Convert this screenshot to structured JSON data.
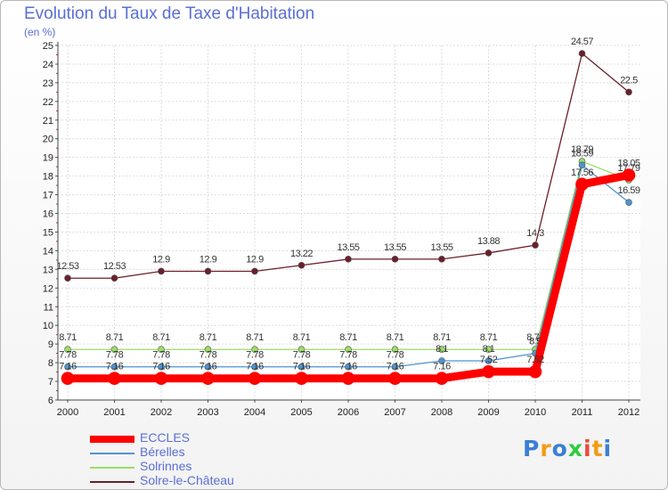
{
  "chart_data": {
    "type": "line",
    "title": "Evolution du Taux de Taxe d'Habitation",
    "subtitle": "(en %)",
    "x": [
      "2000",
      "2001",
      "2002",
      "2003",
      "2004",
      "2005",
      "2006",
      "2007",
      "2008",
      "2009",
      "2010",
      "2011",
      "2012"
    ],
    "ylim": [
      6,
      25
    ],
    "yticks": [
      6,
      7,
      8,
      9,
      10,
      11,
      12,
      13,
      14,
      15,
      16,
      17,
      18,
      19,
      20,
      21,
      22,
      23,
      24,
      25
    ],
    "grid": true,
    "legend_position": "bottom-left",
    "series": [
      {
        "name": "Solre-le-Château",
        "color": "#6b1f2a",
        "values": [
          12.53,
          12.53,
          12.9,
          12.9,
          12.9,
          13.22,
          13.55,
          13.55,
          13.55,
          13.88,
          14.3,
          24.57,
          22.5
        ],
        "labels": [
          "12.53",
          "12.53",
          "12.9",
          "12.9",
          "12.9",
          "13.22",
          "13.55",
          "13.55",
          "13.55",
          "13.88",
          "14.3",
          "24.57",
          "22.5"
        ]
      },
      {
        "name": "Solrinnes",
        "color": "#99dd66",
        "values": [
          8.71,
          8.71,
          8.71,
          8.71,
          8.71,
          8.71,
          8.71,
          8.71,
          8.71,
          8.71,
          8.71,
          18.79,
          17.79
        ],
        "labels": [
          "8.71",
          "8.71",
          "8.71",
          "8.71",
          "8.71",
          "8.71",
          "8.71",
          "8.71",
          "8.71",
          "8.71",
          "8.71",
          "18.79",
          "17.79"
        ]
      },
      {
        "name": "Bérelles",
        "color": "#4f93cf",
        "values": [
          7.78,
          7.78,
          7.78,
          7.78,
          7.78,
          7.78,
          7.78,
          7.78,
          8.1,
          8.1,
          8.5,
          18.59,
          16.59
        ],
        "labels": [
          "7.78",
          "7.78",
          "7.78",
          "7.78",
          "7.78",
          "7.78",
          "7.78",
          "7.78",
          "8.1",
          "8.1",
          "8.5",
          "18.59",
          "16.59"
        ]
      },
      {
        "name": "ECCLES",
        "color": "#ff0000",
        "values": [
          7.16,
          7.16,
          7.16,
          7.16,
          7.16,
          7.16,
          7.16,
          7.16,
          7.16,
          7.52,
          7.52,
          17.56,
          18.05
        ],
        "labels": [
          "7.16",
          "7.16",
          "7.16",
          "7.16",
          "7.16",
          "7.16",
          "7.16",
          "7.16",
          "7.16",
          "7.52",
          "7.52",
          "17.56",
          "18.05"
        ]
      }
    ],
    "legend": [
      {
        "name": "ECCLES",
        "color": "#ff0000",
        "width": 8
      },
      {
        "name": "Bérelles",
        "color": "#4f93cf",
        "width": 2
      },
      {
        "name": "Solrinnes",
        "color": "#99dd66",
        "width": 2
      },
      {
        "name": "Solre-le-Château",
        "color": "#6b1f2a",
        "width": 2
      }
    ]
  },
  "logo": {
    "letters": [
      "P",
      "r",
      "o",
      "x",
      "i",
      "t",
      "i"
    ],
    "colors": [
      "#3a7fd5",
      "#f39c12",
      "#3a7fd5",
      "#2ecc40",
      "#e74c3c",
      "#f39c12",
      "#3a7fd5"
    ]
  }
}
